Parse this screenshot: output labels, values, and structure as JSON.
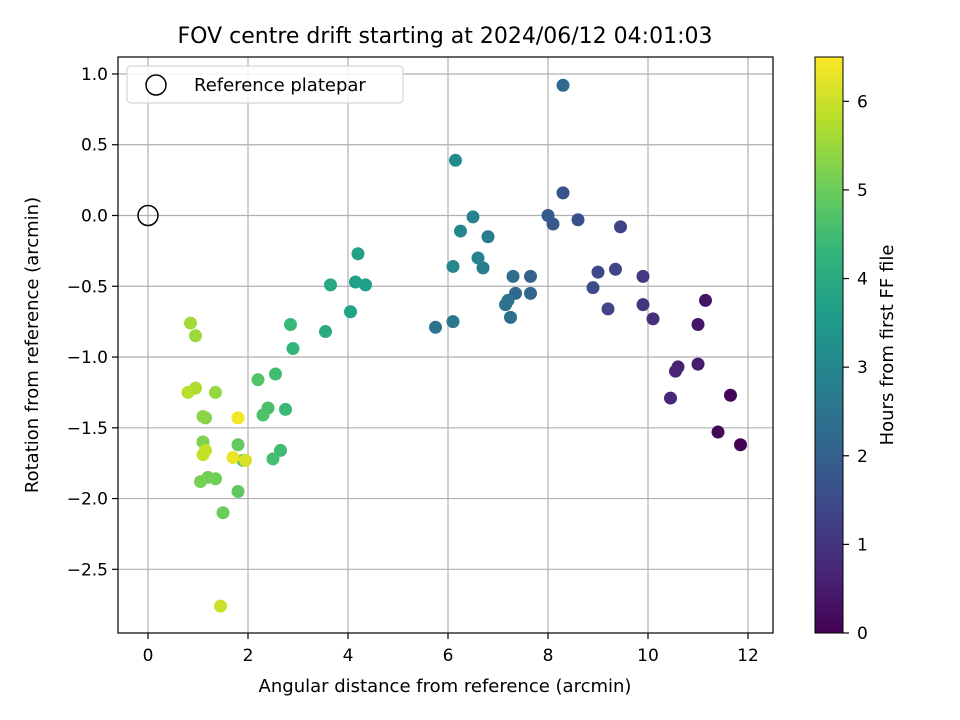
{
  "chart_data": {
    "type": "scatter",
    "title": "FOV centre drift starting at 2024/06/12 04:01:03",
    "xlabel": "Angular distance from reference (arcmin)",
    "ylabel": "Rotation from reference (arcmin)",
    "xlim": [
      -0.6,
      12.5
    ],
    "ylim": [
      -2.95,
      1.12
    ],
    "xticks": [
      0,
      2,
      4,
      6,
      8,
      10,
      12
    ],
    "yticks": [
      1.0,
      0.5,
      0.0,
      -0.5,
      -1.0,
      -1.5,
      -2.0,
      -2.5
    ],
    "xtick_labels": [
      "0",
      "2",
      "4",
      "6",
      "8",
      "10",
      "12"
    ],
    "ytick_labels": [
      "1.0",
      "0.5",
      "0.0",
      "−0.5",
      "−1.0",
      "−1.5",
      "−2.0",
      "−2.5"
    ],
    "grid": true,
    "legend": {
      "position": "top-left",
      "entries": [
        {
          "label": "Reference platepar",
          "marker": "open-circle"
        }
      ]
    },
    "reference_point": {
      "x": 0,
      "y": 0
    },
    "colorbar": {
      "label": "Hours from first FF file",
      "range": [
        0,
        6.5
      ],
      "ticks": [
        0,
        1,
        2,
        3,
        4,
        5,
        6
      ],
      "tick_labels": [
        "0",
        "1",
        "2",
        "3",
        "4",
        "5",
        "6"
      ],
      "colormap": "viridis"
    },
    "colormap_stops": [
      "#440154",
      "#482878",
      "#3e4989",
      "#31688e",
      "#26828e",
      "#1f9e89",
      "#35b779",
      "#6ece58",
      "#b5de2b",
      "#fde725"
    ],
    "points": [
      {
        "x": 11.85,
        "y": -1.62,
        "t": 0.05
      },
      {
        "x": 11.4,
        "y": -1.53,
        "t": 0.15
      },
      {
        "x": 11.65,
        "y": -1.27,
        "t": 0.1
      },
      {
        "x": 11.15,
        "y": -0.6,
        "t": 0.35
      },
      {
        "x": 11.0,
        "y": -0.77,
        "t": 0.4
      },
      {
        "x": 11.0,
        "y": -1.05,
        "t": 0.5
      },
      {
        "x": 10.6,
        "y": -1.07,
        "t": 0.6
      },
      {
        "x": 10.55,
        "y": -1.1,
        "t": 0.65
      },
      {
        "x": 10.45,
        "y": -1.29,
        "t": 0.75
      },
      {
        "x": 10.1,
        "y": -0.73,
        "t": 0.9
      },
      {
        "x": 9.9,
        "y": -0.63,
        "t": 1.0
      },
      {
        "x": 9.9,
        "y": -0.43,
        "t": 1.1
      },
      {
        "x": 9.45,
        "y": -0.08,
        "t": 1.3
      },
      {
        "x": 9.35,
        "y": -0.38,
        "t": 1.35
      },
      {
        "x": 9.0,
        "y": -0.4,
        "t": 1.45
      },
      {
        "x": 9.2,
        "y": -0.66,
        "t": 1.4
      },
      {
        "x": 8.9,
        "y": -0.51,
        "t": 1.5
      },
      {
        "x": 8.6,
        "y": -0.03,
        "t": 1.6
      },
      {
        "x": 8.3,
        "y": 0.16,
        "t": 1.7
      },
      {
        "x": 8.1,
        "y": -0.06,
        "t": 1.8
      },
      {
        "x": 8.0,
        "y": 0.0,
        "t": 1.85
      },
      {
        "x": 8.3,
        "y": 0.92,
        "t": 2.2
      },
      {
        "x": 7.65,
        "y": -0.43,
        "t": 2.0
      },
      {
        "x": 7.65,
        "y": -0.55,
        "t": 2.1
      },
      {
        "x": 7.35,
        "y": -0.55,
        "t": 2.2
      },
      {
        "x": 7.3,
        "y": -0.43,
        "t": 2.3
      },
      {
        "x": 7.2,
        "y": -0.6,
        "t": 2.35
      },
      {
        "x": 7.25,
        "y": -0.72,
        "t": 2.4
      },
      {
        "x": 7.15,
        "y": -0.63,
        "t": 2.45
      },
      {
        "x": 5.75,
        "y": -0.79,
        "t": 2.5
      },
      {
        "x": 6.1,
        "y": -0.75,
        "t": 2.6
      },
      {
        "x": 6.8,
        "y": -0.15,
        "t": 2.7
      },
      {
        "x": 6.7,
        "y": -0.37,
        "t": 2.8
      },
      {
        "x": 6.6,
        "y": -0.3,
        "t": 2.85
      },
      {
        "x": 6.5,
        "y": -0.01,
        "t": 2.9
      },
      {
        "x": 6.25,
        "y": -0.11,
        "t": 3.0
      },
      {
        "x": 6.1,
        "y": -0.36,
        "t": 3.05
      },
      {
        "x": 6.15,
        "y": 0.39,
        "t": 3.15
      },
      {
        "x": 4.35,
        "y": -0.49,
        "t": 3.6
      },
      {
        "x": 4.15,
        "y": -0.47,
        "t": 3.65
      },
      {
        "x": 4.2,
        "y": -0.27,
        "t": 3.7
      },
      {
        "x": 4.05,
        "y": -0.68,
        "t": 3.75
      },
      {
        "x": 3.65,
        "y": -0.49,
        "t": 3.9
      },
      {
        "x": 3.55,
        "y": -0.82,
        "t": 4.0
      },
      {
        "x": 2.9,
        "y": -0.94,
        "t": 4.3
      },
      {
        "x": 2.85,
        "y": -0.77,
        "t": 4.35
      },
      {
        "x": 2.75,
        "y": -1.37,
        "t": 4.4
      },
      {
        "x": 2.65,
        "y": -1.66,
        "t": 4.45
      },
      {
        "x": 2.55,
        "y": -1.12,
        "t": 4.5
      },
      {
        "x": 2.5,
        "y": -1.72,
        "t": 4.55
      },
      {
        "x": 2.4,
        "y": -1.36,
        "t": 4.6
      },
      {
        "x": 2.3,
        "y": -1.41,
        "t": 4.65
      },
      {
        "x": 2.2,
        "y": -1.16,
        "t": 4.7
      },
      {
        "x": 1.9,
        "y": -1.73,
        "t": 4.8
      },
      {
        "x": 1.8,
        "y": -1.95,
        "t": 4.85
      },
      {
        "x": 1.8,
        "y": -1.62,
        "t": 4.9
      },
      {
        "x": 1.5,
        "y": -2.1,
        "t": 5.0
      },
      {
        "x": 1.35,
        "y": -1.86,
        "t": 5.05
      },
      {
        "x": 1.2,
        "y": -1.85,
        "t": 5.1
      },
      {
        "x": 1.05,
        "y": -1.88,
        "t": 5.15
      },
      {
        "x": 1.1,
        "y": -1.6,
        "t": 5.2
      },
      {
        "x": 1.15,
        "y": -1.43,
        "t": 5.3
      },
      {
        "x": 1.1,
        "y": -1.42,
        "t": 5.35
      },
      {
        "x": 1.35,
        "y": -1.25,
        "t": 5.45
      },
      {
        "x": 0.95,
        "y": -0.85,
        "t": 5.5
      },
      {
        "x": 0.85,
        "y": -0.76,
        "t": 5.6
      },
      {
        "x": 0.95,
        "y": -1.22,
        "t": 5.7
      },
      {
        "x": 0.8,
        "y": -1.25,
        "t": 5.8
      },
      {
        "x": 1.15,
        "y": -1.66,
        "t": 5.9
      },
      {
        "x": 1.1,
        "y": -1.69,
        "t": 5.95
      },
      {
        "x": 1.45,
        "y": -2.76,
        "t": 6.0
      },
      {
        "x": 1.95,
        "y": -1.73,
        "t": 6.1
      },
      {
        "x": 1.7,
        "y": -1.71,
        "t": 6.3
      },
      {
        "x": 1.8,
        "y": -1.43,
        "t": 6.4
      }
    ]
  }
}
